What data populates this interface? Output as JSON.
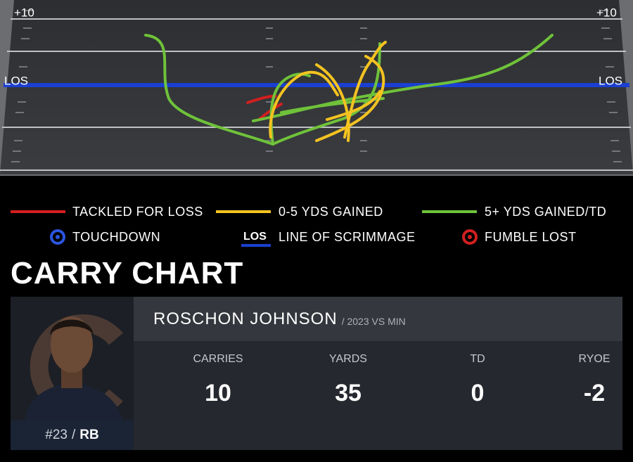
{
  "field": {
    "top_left": "+10",
    "top_right": "+10",
    "los_left": "LOS",
    "los_right": "LOS"
  },
  "legend": {
    "items": [
      {
        "label": "TACKLED FOR LOSS"
      },
      {
        "label": "0-5 YDS GAINED"
      },
      {
        "label": "5+ YDS GAINED/TD"
      },
      {
        "label": "TOUCHDOWN"
      },
      {
        "label": "LINE OF SCRIMMAGE"
      },
      {
        "label": "FUMBLE LOST"
      }
    ],
    "los_icon": "LOS"
  },
  "title": "CARRY CHART",
  "player": {
    "name": "ROSCHON JOHNSON",
    "season": "/ 2023 VS MIN",
    "number": "#23",
    "separator": "/",
    "position": "RB"
  },
  "stats": [
    {
      "label": "CARRIES",
      "value": 10
    },
    {
      "label": "YARDS",
      "value": 35
    },
    {
      "label": "TD",
      "value": 0
    },
    {
      "label": "RYOE",
      "value": -2
    }
  ]
}
